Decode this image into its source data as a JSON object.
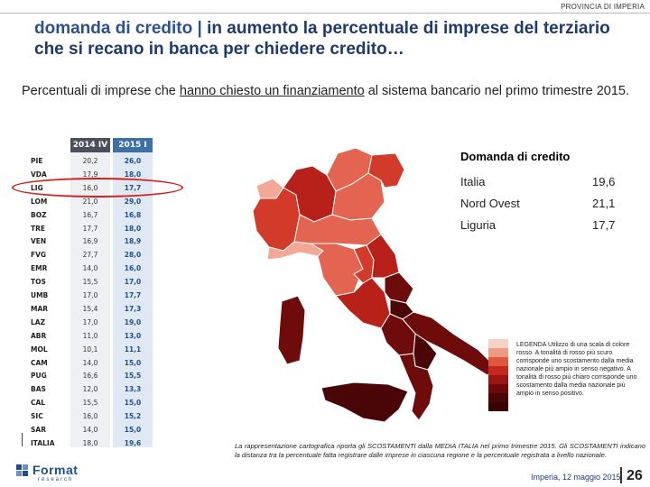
{
  "header": {
    "tag": "PROVINCIA DI IMPERIA"
  },
  "title": {
    "accent": "domanda di credito |",
    "rest": " in aumento la percentuale di imprese del terziario che si recano in banca per chiedere credito…"
  },
  "subtitle": {
    "pre": "Percentuali di imprese che ",
    "underlined": "hanno chiesto un finanziamento",
    "post": " al sistema bancario nel primo trimestre 2015."
  },
  "table": {
    "headers": [
      "2014 IV",
      "2015 I"
    ],
    "rows": [
      {
        "region": "PIE",
        "v1": "20,2",
        "v2": "26,0"
      },
      {
        "region": "VDA",
        "v1": "17,9",
        "v2": "18,0"
      },
      {
        "region": "LIG",
        "v1": "16,0",
        "v2": "17,7"
      },
      {
        "region": "LOM",
        "v1": "21,0",
        "v2": "29,0"
      },
      {
        "region": "BOZ",
        "v1": "16,7",
        "v2": "16,8"
      },
      {
        "region": "TRE",
        "v1": "17,7",
        "v2": "18,0"
      },
      {
        "region": "VEN",
        "v1": "16,9",
        "v2": "18,9"
      },
      {
        "region": "FVG",
        "v1": "27,7",
        "v2": "28,0"
      },
      {
        "region": "EMR",
        "v1": "14,0",
        "v2": "16,0"
      },
      {
        "region": "TOS",
        "v1": "15,5",
        "v2": "17,0"
      },
      {
        "region": "UMB",
        "v1": "17,0",
        "v2": "17,7"
      },
      {
        "region": "MAR",
        "v1": "15,4",
        "v2": "17,3"
      },
      {
        "region": "LAZ",
        "v1": "17,0",
        "v2": "19,0"
      },
      {
        "region": "ABR",
        "v1": "11,0",
        "v2": "13,0"
      },
      {
        "region": "MOL",
        "v1": "10,1",
        "v2": "11,1"
      },
      {
        "region": "CAM",
        "v1": "14,0",
        "v2": "15,0"
      },
      {
        "region": "PUG",
        "v1": "16,6",
        "v2": "15,5"
      },
      {
        "region": "BAS",
        "v1": "12,0",
        "v2": "13,3"
      },
      {
        "region": "CAL",
        "v1": "15,5",
        "v2": "15,0"
      },
      {
        "region": "SIC",
        "v1": "16,0",
        "v2": "15,2"
      },
      {
        "region": "SAR",
        "v1": "14,0",
        "v2": "15,0"
      },
      {
        "region": "ITALIA",
        "v1": "18,0",
        "v2": "19,6"
      }
    ]
  },
  "stats_box": {
    "title": "Domanda di credito",
    "rows": [
      {
        "label": "Italia",
        "value": "19,6"
      },
      {
        "label": "Nord Ovest",
        "value": "21,1"
      },
      {
        "label": "Liguria",
        "value": "17,7"
      }
    ]
  },
  "legend": {
    "text": "LEGENDA Utilizzo di una scala di colore rosso. A tonalità di rosso più scuro corrisponde uno scostamento dalla media nazionale più ampio in senso negativo. A tonalità di rosso più chiaro corrisponde uno scostamento dalla media nazionale più ampio in senso positivo.",
    "colors": [
      "#f6d2c6",
      "#ef9a82",
      "#e0573f",
      "#c5281e",
      "#9d1414",
      "#6e0a0a",
      "#4a0606",
      "#3a0404"
    ]
  },
  "footnote": "La rappresentazione cartografica riporta gli SCOSTAMENTI dalla MEDIA ITALIA nel primo trimestre 2015. Gli SCOSTAMENTI indicano la distanza tra la percentuale fatta registrare dalle imprese in ciascuna regione e la percentuale registrata a livello nazionale.",
  "logo": {
    "text": "Format",
    "sub": "research"
  },
  "footer": {
    "date": "Imperia, 12 maggio 2015",
    "page": "26"
  },
  "map_colors": {
    "light": "#f9d6c7",
    "pale": "#f3a896",
    "medium": "#e36450",
    "bright": "#d23a2a",
    "red": "#b8201a",
    "dark": "#6e0c0c",
    "darkest": "#4a0606"
  }
}
